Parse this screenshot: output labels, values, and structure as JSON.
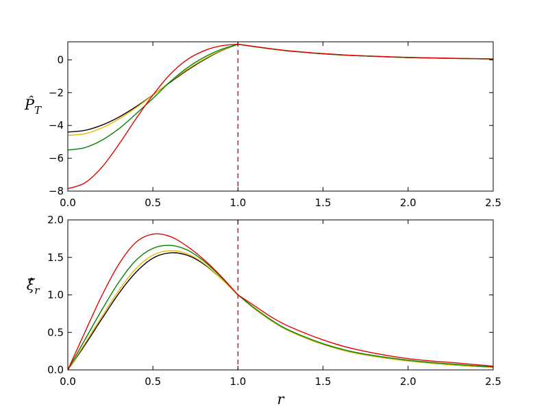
{
  "chart_data": [
    {
      "type": "line",
      "ylabel": "P̂_T",
      "xlabel": "",
      "xlim": [
        0.0,
        2.5
      ],
      "ylim": [
        -8,
        1.1
      ],
      "xticks": [
        "0.0",
        "0.5",
        "1.0",
        "1.5",
        "2.0",
        "2.5"
      ],
      "xtick_values": [
        0.0,
        0.5,
        1.0,
        1.5,
        2.0,
        2.5
      ],
      "yticks": [
        "−8",
        "−6",
        "−4",
        "−2",
        "0"
      ],
      "ytick_values": [
        -8,
        -6,
        -4,
        -2,
        0
      ],
      "vline": {
        "x": 1.0,
        "color": "#e00000",
        "style": "dashed"
      },
      "series": [
        {
          "color": "#000000",
          "x": [
            0.0,
            0.1,
            0.2,
            0.3,
            0.4,
            0.5,
            0.6,
            0.7,
            0.8,
            0.9,
            1.0,
            1.1,
            1.2,
            1.3,
            1.5,
            1.7,
            2.0,
            2.3,
            2.5
          ],
          "y": [
            -4.4,
            -4.3,
            -3.98,
            -3.49,
            -2.86,
            -2.14,
            -1.38,
            -0.65,
            0.0,
            0.55,
            0.95,
            0.8,
            0.66,
            0.54,
            0.37,
            0.25,
            0.14,
            0.08,
            0.05
          ]
        },
        {
          "color": "#e6b800",
          "x": [
            0.0,
            0.1,
            0.2,
            0.3,
            0.4,
            0.5,
            0.6,
            0.7,
            0.8,
            0.9,
            1.0,
            1.1,
            1.2,
            1.3,
            1.5,
            1.7,
            2.0,
            2.3,
            2.5
          ],
          "y": [
            -4.6,
            -4.5,
            -4.15,
            -3.6,
            -2.92,
            -2.15,
            -1.35,
            -0.6,
            0.04,
            0.57,
            0.95,
            0.8,
            0.66,
            0.54,
            0.37,
            0.25,
            0.14,
            0.08,
            0.05
          ]
        },
        {
          "color": "#008000",
          "x": [
            0.0,
            0.1,
            0.2,
            0.3,
            0.4,
            0.5,
            0.6,
            0.7,
            0.8,
            0.9,
            1.0,
            1.1,
            1.2,
            1.3,
            1.5,
            1.7,
            2.0,
            2.3,
            2.5
          ],
          "y": [
            -5.5,
            -5.35,
            -4.9,
            -4.2,
            -3.3,
            -2.35,
            -1.35,
            -0.5,
            0.15,
            0.63,
            0.95,
            0.8,
            0.66,
            0.54,
            0.37,
            0.25,
            0.14,
            0.08,
            0.05
          ]
        },
        {
          "color": "#e00000",
          "x": [
            0.0,
            0.1,
            0.2,
            0.3,
            0.4,
            0.5,
            0.6,
            0.7,
            0.8,
            0.9,
            1.0,
            1.1,
            1.2,
            1.3,
            1.5,
            1.7,
            2.0,
            2.3,
            2.5
          ],
          "y": [
            -7.85,
            -7.5,
            -6.55,
            -5.15,
            -3.6,
            -2.15,
            -0.9,
            0.0,
            0.55,
            0.85,
            0.95,
            0.81,
            0.67,
            0.55,
            0.38,
            0.26,
            0.15,
            0.09,
            0.06
          ]
        }
      ]
    },
    {
      "type": "line",
      "ylabel": "ξ̂_r",
      "xlabel": "r",
      "xlim": [
        0.0,
        2.5
      ],
      "ylim": [
        0.0,
        2.0
      ],
      "xticks": [
        "0.0",
        "0.5",
        "1.0",
        "1.5",
        "2.0",
        "2.5"
      ],
      "xtick_values": [
        0.0,
        0.5,
        1.0,
        1.5,
        2.0,
        2.5
      ],
      "yticks": [
        "0.0",
        "0.5",
        "1.0",
        "1.5",
        "2.0"
      ],
      "ytick_values": [
        0.0,
        0.5,
        1.0,
        1.5,
        2.0
      ],
      "vline": {
        "x": 1.0,
        "color": "#e00000",
        "style": "dashed"
      },
      "series": [
        {
          "color": "#000000",
          "x": [
            0.0,
            0.1,
            0.2,
            0.3,
            0.4,
            0.5,
            0.6,
            0.7,
            0.8,
            0.9,
            1.0,
            1.1,
            1.2,
            1.3,
            1.5,
            1.7,
            2.0,
            2.3,
            2.5
          ],
          "y": [
            0.0,
            0.33,
            0.68,
            1.02,
            1.3,
            1.49,
            1.56,
            1.53,
            1.41,
            1.22,
            1.0,
            0.81,
            0.65,
            0.52,
            0.34,
            0.22,
            0.12,
            0.06,
            0.035
          ]
        },
        {
          "color": "#e6b800",
          "x": [
            0.0,
            0.1,
            0.2,
            0.3,
            0.4,
            0.5,
            0.6,
            0.7,
            0.8,
            0.9,
            1.0,
            1.1,
            1.2,
            1.3,
            1.5,
            1.7,
            2.0,
            2.3,
            2.5
          ],
          "y": [
            0.0,
            0.35,
            0.71,
            1.06,
            1.35,
            1.53,
            1.59,
            1.55,
            1.42,
            1.22,
            1.0,
            0.81,
            0.65,
            0.52,
            0.34,
            0.22,
            0.12,
            0.06,
            0.035
          ]
        },
        {
          "color": "#008000",
          "x": [
            0.0,
            0.1,
            0.2,
            0.3,
            0.4,
            0.5,
            0.6,
            0.7,
            0.8,
            0.9,
            1.0,
            1.1,
            1.2,
            1.3,
            1.5,
            1.7,
            2.0,
            2.3,
            2.5
          ],
          "y": [
            0.0,
            0.4,
            0.8,
            1.17,
            1.46,
            1.62,
            1.66,
            1.6,
            1.45,
            1.24,
            1.0,
            0.82,
            0.66,
            0.53,
            0.35,
            0.23,
            0.13,
            0.07,
            0.04
          ]
        },
        {
          "color": "#e00000",
          "x": [
            0.0,
            0.1,
            0.2,
            0.3,
            0.4,
            0.5,
            0.6,
            0.7,
            0.8,
            0.9,
            1.0,
            1.1,
            1.2,
            1.3,
            1.5,
            1.7,
            2.0,
            2.3,
            2.5
          ],
          "y": [
            0.0,
            0.5,
            0.99,
            1.41,
            1.7,
            1.81,
            1.78,
            1.65,
            1.47,
            1.25,
            1.0,
            0.85,
            0.7,
            0.58,
            0.4,
            0.27,
            0.15,
            0.09,
            0.05
          ]
        }
      ]
    }
  ]
}
